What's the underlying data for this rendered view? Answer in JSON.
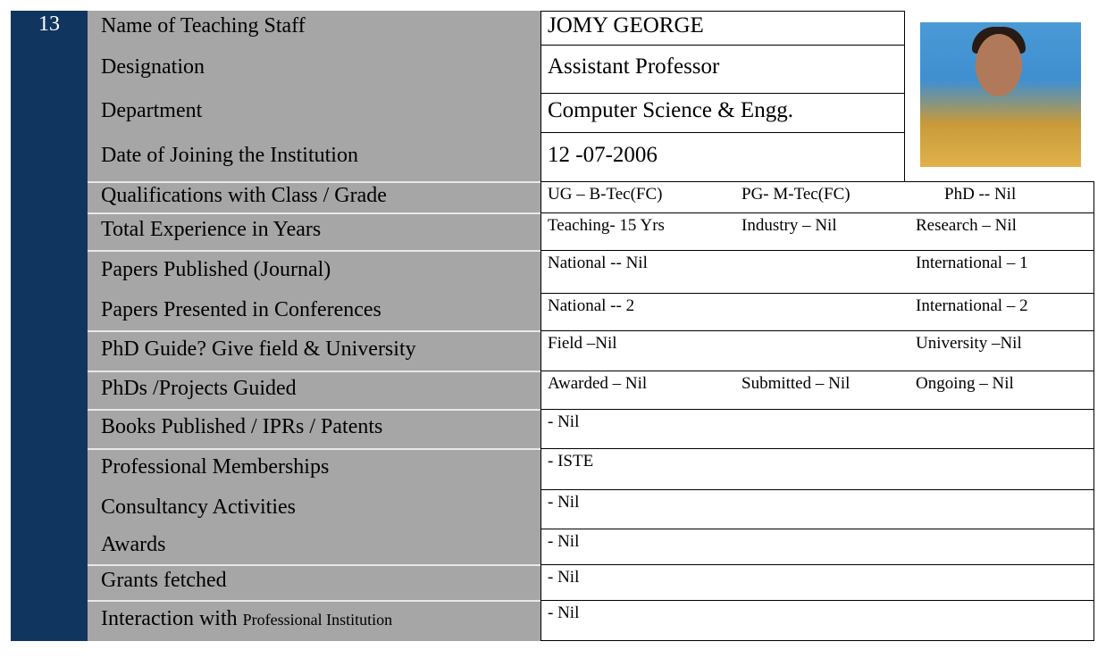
{
  "staff_number": "13",
  "rows": [
    {
      "label": "Name of Teaching Staff",
      "values": [
        "JOMY GEORGE"
      ]
    },
    {
      "label": "Designation",
      "values": [
        "Assistant Professor"
      ]
    },
    {
      "label": "Department",
      "values": [
        "Computer Science & Engg."
      ]
    },
    {
      "label": "Date of Joining the Institution",
      "values": [
        "12 -07-2006"
      ]
    },
    {
      "label": "Qualifications with Class / Grade",
      "values": [
        "UG – B-Tec(FC)",
        "PG- M-Tec(FC)",
        "PhD -- Nil"
      ]
    },
    {
      "label": "Total Experience in Years",
      "values": [
        "Teaching- 15 Yrs",
        "Industry – Nil",
        "Research – Nil"
      ]
    },
    {
      "label": "Papers Published (Journal)",
      "values": [
        "National  -- Nil",
        "International – 1"
      ]
    },
    {
      "label": "Papers Presented in Conferences",
      "values": [
        "National -- 2",
        "International – 2"
      ]
    },
    {
      "label": "PhD Guide? Give field & University",
      "values": [
        "Field –Nil",
        "University –Nil"
      ]
    },
    {
      "label": "PhDs /Projects Guided",
      "values": [
        "Awarded – Nil",
        "Submitted – Nil",
        "Ongoing – Nil"
      ]
    },
    {
      "label": "Books Published / IPRs / Patents",
      "values": [
        "- Nil"
      ]
    },
    {
      "label": "Professional Memberships",
      "values": [
        "- ISTE"
      ]
    },
    {
      "label": "Consultancy Activities",
      "values": [
        "- Nil"
      ]
    },
    {
      "label": "Awards",
      "values": [
        "- Nil"
      ]
    },
    {
      "label": "Grants fetched",
      "values": [
        "- Nil"
      ]
    },
    {
      "label": "Interaction with ",
      "label_small": "Professional Institution",
      "values": [
        "- Nil"
      ]
    }
  ]
}
